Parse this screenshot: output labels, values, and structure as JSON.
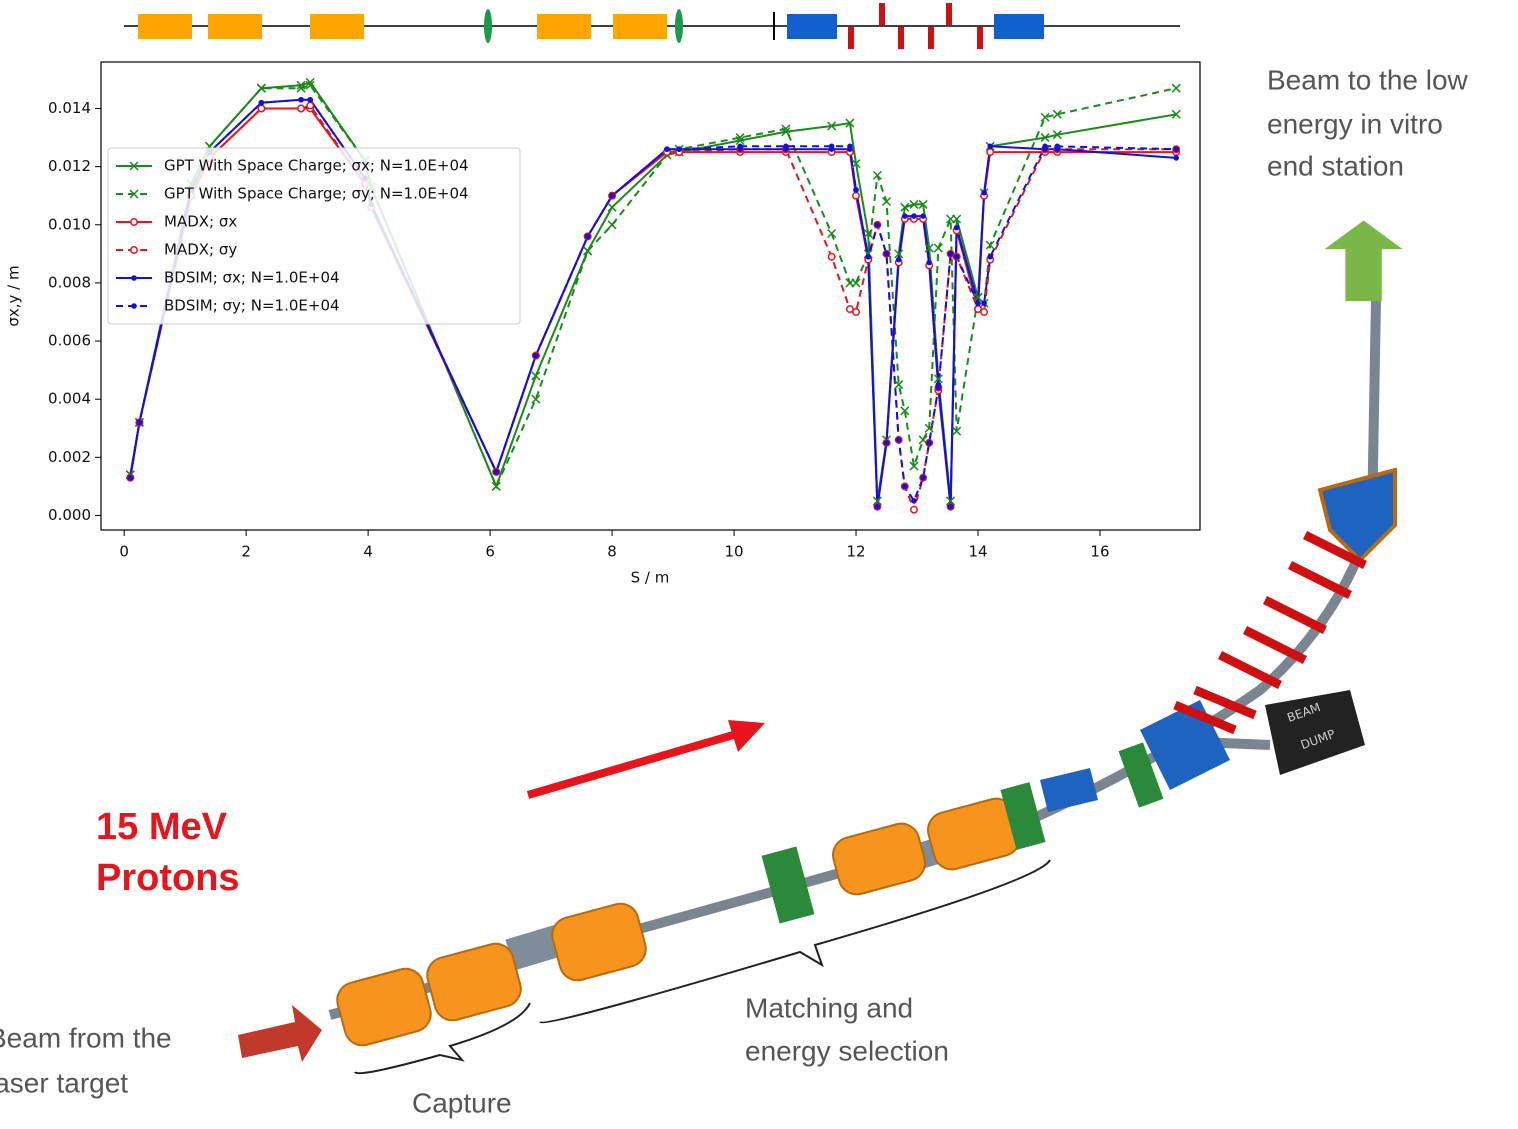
{
  "chart_data": {
    "type": "line",
    "x_label": "S / m",
    "y_label": "σx,y / m",
    "x": [
      0.1,
      0.25,
      1.1,
      1.4,
      2.25,
      2.9,
      3.05,
      3.95,
      4.05,
      6.1,
      6.75,
      7.6,
      8.0,
      8.9,
      9.1,
      10.1,
      10.85,
      11.6,
      11.9,
      12.0,
      12.2,
      12.35,
      12.5,
      12.7,
      12.8,
      12.95,
      13.1,
      13.2,
      13.35,
      13.55,
      13.65,
      14.0,
      14.1,
      14.2,
      15.1,
      15.3,
      17.25
    ],
    "series": [
      {
        "name": "GPT With Space Charge; σx; N=1.0E+04",
        "color": "#1a8a1a",
        "linestyle": "solid",
        "marker": "x",
        "values": [
          0.0014,
          0.0032,
          0.0114,
          0.0127,
          0.0147,
          0.0148,
          0.0149,
          0.0122,
          0.0113,
          0.001,
          0.0048,
          0.0091,
          0.0106,
          0.0124,
          0.0125,
          0.0129,
          0.0132,
          0.0134,
          0.0135,
          0.0121,
          0.0097,
          0.0005,
          0.0026,
          0.009,
          0.0106,
          0.0107,
          0.0107,
          0.0092,
          0.0047,
          0.0005,
          0.0102,
          0.0075,
          0.0111,
          0.0127,
          0.013,
          0.0131,
          0.0138
        ]
      },
      {
        "name": "GPT With Space Charge; σy; N=1.0E+04",
        "color": "#1a8a1a",
        "linestyle": "dashed",
        "marker": "x",
        "values": [
          0.0014,
          0.0032,
          0.0114,
          0.0127,
          0.0147,
          0.0147,
          0.0148,
          0.0122,
          0.0113,
          0.001,
          0.004,
          0.0091,
          0.01,
          0.0124,
          0.0126,
          0.013,
          0.0133,
          0.0097,
          0.008,
          0.008,
          0.009,
          0.0117,
          0.0108,
          0.0045,
          0.0036,
          0.0017,
          0.0026,
          0.003,
          0.0092,
          0.0102,
          0.0029,
          0.0075,
          0.0073,
          0.0093,
          0.0137,
          0.0138,
          0.0147
        ]
      },
      {
        "name": "MADX; σx",
        "color": "#e8141c",
        "linestyle": "solid",
        "marker": "o",
        "values": [
          0.0013,
          0.0032,
          0.011,
          0.0123,
          0.014,
          0.014,
          0.014,
          0.0114,
          0.0106,
          0.0015,
          0.0055,
          0.0096,
          0.011,
          0.0125,
          0.0125,
          0.0125,
          0.0125,
          0.0125,
          0.0125,
          0.011,
          0.0088,
          0.0003,
          0.0025,
          0.0087,
          0.0102,
          0.0102,
          0.0102,
          0.0086,
          0.0043,
          0.0003,
          0.0098,
          0.0071,
          0.011,
          0.0125,
          0.0125,
          0.0125,
          0.0125
        ]
      },
      {
        "name": "MADX; σy",
        "color": "#e8141c",
        "linestyle": "dashed",
        "marker": "o",
        "values": [
          0.0013,
          0.0032,
          0.011,
          0.0123,
          0.014,
          0.014,
          0.0141,
          0.0114,
          0.0106,
          0.0015,
          0.0055,
          0.0096,
          0.011,
          0.0125,
          0.0125,
          0.0126,
          0.0126,
          0.0089,
          0.0071,
          0.007,
          0.0088,
          0.01,
          0.009,
          0.0026,
          0.001,
          0.0002,
          0.0013,
          0.0025,
          0.0044,
          0.009,
          0.0089,
          0.0071,
          0.007,
          0.0088,
          0.0126,
          0.0126,
          0.0126
        ]
      },
      {
        "name": "BDSIM; σx; N=1.0E+04",
        "color": "#1010e0",
        "linestyle": "solid",
        "marker": "+",
        "values": [
          0.0013,
          0.0032,
          0.0112,
          0.0125,
          0.0142,
          0.0143,
          0.0143,
          0.0116,
          0.0107,
          0.0015,
          0.0055,
          0.0096,
          0.011,
          0.0126,
          0.0126,
          0.0126,
          0.0126,
          0.0126,
          0.0126,
          0.0112,
          0.0089,
          0.0003,
          0.0025,
          0.0088,
          0.0103,
          0.0103,
          0.0103,
          0.0087,
          0.0045,
          0.0003,
          0.0099,
          0.0073,
          0.0111,
          0.0127,
          0.0126,
          0.0126,
          0.0123
        ]
      },
      {
        "name": "BDSIM; σy; N=1.0E+04",
        "color": "#1010e0",
        "linestyle": "dashed",
        "marker": "+",
        "values": [
          0.0013,
          0.0032,
          0.0112,
          0.0125,
          0.0142,
          0.0143,
          0.0143,
          0.0116,
          0.0107,
          0.0015,
          0.0055,
          0.0096,
          0.011,
          0.0126,
          0.0126,
          0.0127,
          0.0127,
          0.0127,
          0.0127,
          0.0112,
          0.0089,
          0.01,
          0.009,
          0.0026,
          0.001,
          0.0005,
          0.0013,
          0.0025,
          0.0044,
          0.009,
          0.0089,
          0.0073,
          0.0073,
          0.0089,
          0.0127,
          0.0127,
          0.0126
        ]
      }
    ],
    "xlim": [
      -0.38,
      17.64
    ],
    "ylim": [
      -0.0005,
      0.0156
    ],
    "xticks": [
      0,
      2,
      4,
      6,
      8,
      10,
      12,
      14,
      16
    ],
    "yticks": [
      {
        "value": 0,
        "label": "0.000"
      },
      {
        "value": 0.002,
        "label": "0.002"
      },
      {
        "value": 0.004,
        "label": "0.004"
      },
      {
        "value": 0.006,
        "label": "0.006"
      },
      {
        "value": 0.008,
        "label": "0.008"
      },
      {
        "value": 0.01,
        "label": "0.010"
      },
      {
        "value": 0.012,
        "label": "0.012"
      },
      {
        "value": 0.014,
        "label": "0.014"
      }
    ],
    "grid": false,
    "legend": "center left"
  },
  "illustration": {
    "end_station": [
      "Beam to the low",
      "energy in vitro",
      "end station"
    ],
    "energy": [
      "15 MeV",
      "Protons"
    ],
    "source": [
      "Beam from the",
      "laser target"
    ],
    "dump": [
      "BEAM",
      "DUMP"
    ],
    "capture": "Capture",
    "matching": [
      "Matching and",
      "energy selection"
    ]
  }
}
